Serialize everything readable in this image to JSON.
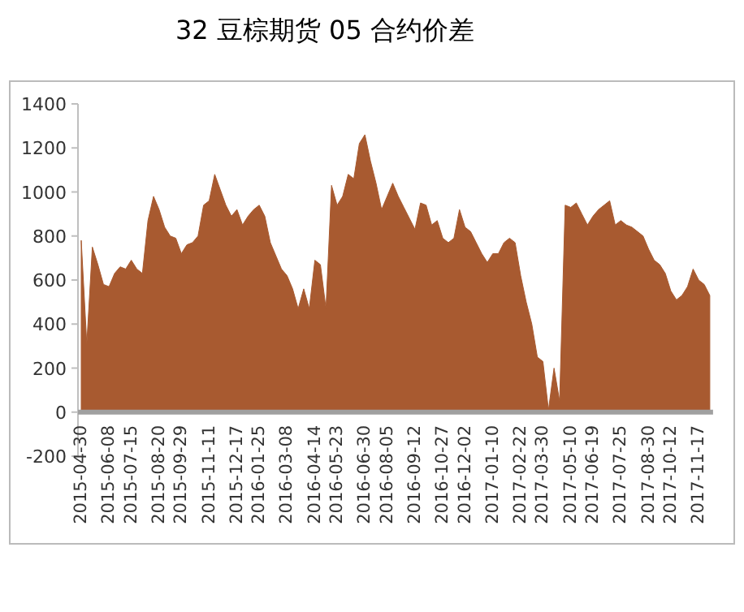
{
  "chart_data": {
    "type": "area",
    "title": "32 豆棕期货 05 合约价差",
    "categories": [
      "2015-04-30",
      null,
      null,
      null,
      null,
      "2015-06-08",
      null,
      null,
      null,
      "2015-07-15",
      null,
      null,
      null,
      null,
      "2015-08-20",
      null,
      null,
      null,
      "2015-09-29",
      null,
      null,
      null,
      null,
      "2015-11-11",
      null,
      null,
      null,
      null,
      "2015-12-17",
      null,
      null,
      null,
      "2016-01-25",
      null,
      null,
      null,
      null,
      "2016-03-08",
      null,
      null,
      null,
      null,
      "2016-04-14",
      null,
      null,
      null,
      "2016-05-23",
      null,
      null,
      null,
      null,
      "2016-06-30",
      null,
      null,
      null,
      "2016-08-05",
      null,
      null,
      null,
      null,
      "2016-09-12",
      null,
      null,
      null,
      null,
      "2016-10-27",
      null,
      null,
      null,
      "2016-12-02",
      null,
      null,
      null,
      null,
      "2017-01-10",
      null,
      null,
      null,
      null,
      "2017-02-22",
      null,
      null,
      null,
      "2017-03-30",
      null,
      null,
      null,
      null,
      "2017-05-10",
      null,
      null,
      null,
      "2017-06-19",
      null,
      null,
      null,
      null,
      "2017-07-25",
      null,
      null,
      null,
      null,
      "2017-08-30",
      null,
      null,
      null,
      "2017-10-12",
      null,
      null,
      null,
      null,
      "2017-11-17",
      null,
      null
    ],
    "values": [
      780,
      310,
      750,
      670,
      580,
      570,
      630,
      660,
      650,
      690,
      650,
      630,
      870,
      980,
      920,
      840,
      800,
      790,
      720,
      760,
      770,
      800,
      940,
      960,
      1080,
      1010,
      940,
      890,
      920,
      850,
      890,
      920,
      940,
      890,
      770,
      710,
      650,
      620,
      560,
      470,
      560,
      470,
      690,
      670,
      470,
      1030,
      940,
      980,
      1080,
      1060,
      1220,
      1260,
      1140,
      1040,
      920,
      980,
      1040,
      980,
      930,
      880,
      830,
      950,
      940,
      850,
      870,
      790,
      770,
      790,
      920,
      840,
      820,
      770,
      720,
      680,
      720,
      720,
      770,
      790,
      770,
      620,
      500,
      400,
      250,
      230,
      10,
      200,
      50,
      940,
      930,
      950,
      900,
      850,
      890,
      920,
      940,
      960,
      850,
      870,
      850,
      840,
      820,
      800,
      740,
      690,
      670,
      630,
      550,
      510,
      530,
      570,
      650,
      600,
      580,
      530
    ],
    "color": "#a85a30",
    "ylim": [
      -200,
      1400
    ],
    "yticks": [
      -200,
      0,
      200,
      400,
      600,
      800,
      1000,
      1200,
      1400
    ]
  }
}
